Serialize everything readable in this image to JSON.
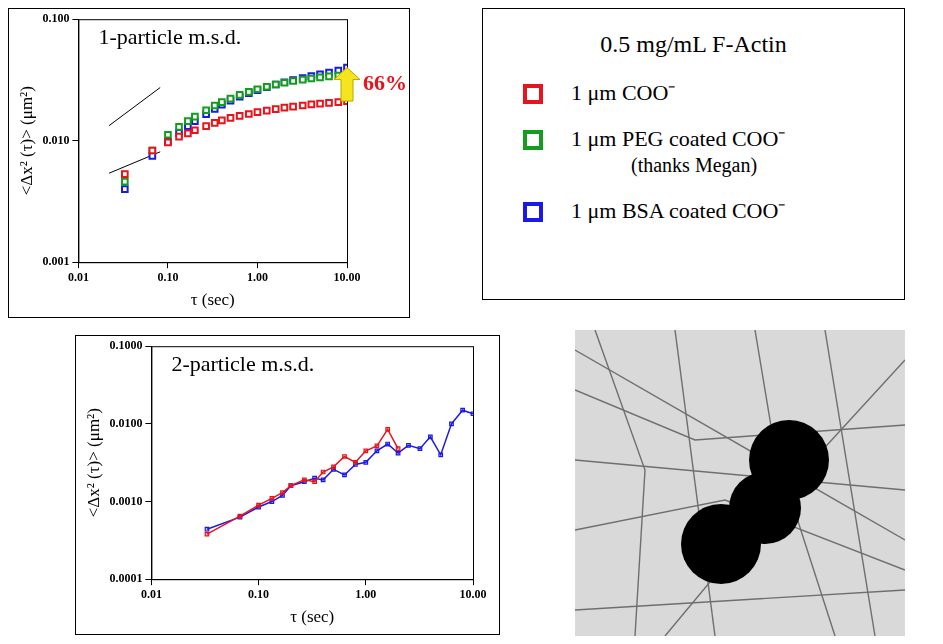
{
  "chart_data": [
    {
      "type": "scatter",
      "title": "1-particle m.s.d.",
      "x_label": "τ (sec)",
      "y_label": "<Δx² (τ)> (μm²)",
      "log": true,
      "grid": false,
      "legend": "right",
      "marker": "square",
      "xlim": [
        0.01,
        10
      ],
      "xticks": [
        0.01,
        {
          "value": 0.1,
          "label": "0.10"
        },
        {
          "value": 1,
          "label": "1.00"
        },
        {
          "value": 10,
          "label": "10.00"
        }
      ],
      "ylim": [
        0.001,
        0.1
      ],
      "yticks": [
        0.001,
        {
          "value": 0.01,
          "label": "0.010"
        },
        {
          "value": 0.1,
          "label": "0.100"
        }
      ],
      "x": [
        0.033,
        0.067,
        0.1,
        0.133,
        0.167,
        0.2,
        0.267,
        0.333,
        0.4,
        0.5,
        0.633,
        0.8,
        1.0,
        1.27,
        1.6,
        2.0,
        2.5,
        3.2,
        4.0,
        5.0,
        6.3,
        8.0,
        10.0
      ],
      "series": [
        {
          "name": "1 μm COO⁻",
          "color": "#e8141c",
          "values": [
            0.0053,
            0.0083,
            0.0097,
            0.0108,
            0.0115,
            0.0122,
            0.0132,
            0.014,
            0.0147,
            0.0154,
            0.016,
            0.0166,
            0.0172,
            0.0177,
            0.0182,
            0.0187,
            0.0191,
            0.0195,
            0.0199,
            0.0202,
            0.0205,
            0.0208,
            0.0212
          ]
        },
        {
          "name": "1 μm PEG coated COO⁻",
          "note": "(thanks Megan)",
          "color": "#149c1c",
          "values": [
            0.0046,
            0.0083,
            0.0112,
            0.013,
            0.0145,
            0.0158,
            0.0178,
            0.0195,
            0.0208,
            0.0222,
            0.0238,
            0.0252,
            0.0265,
            0.0278,
            0.029,
            0.03,
            0.031,
            0.0318,
            0.0325,
            0.0332,
            0.0338,
            0.0344,
            0.035
          ]
        },
        {
          "name": "1 μm BSA coated COO⁻",
          "color": "#1a1ae6",
          "values": [
            0.004,
            0.0075,
            0.0098,
            0.0116,
            0.0132,
            0.0145,
            0.0165,
            0.0183,
            0.0198,
            0.0214,
            0.023,
            0.0246,
            0.0261,
            0.0276,
            0.029,
            0.0303,
            0.0316,
            0.0328,
            0.034,
            0.0352,
            0.0364,
            0.0378,
            0.04
          ]
        }
      ],
      "guide_lines": [
        {
          "x": [
            0.022,
            0.082
          ],
          "y": [
            0.0133,
            0.0274
          ]
        },
        {
          "x": [
            0.022,
            0.082
          ],
          "y": [
            0.0054,
            0.0081
          ]
        }
      ],
      "annotations": [
        {
          "text": "66%",
          "x": 10,
          "y_from": 0.0212,
          "y_to": 0.04,
          "color": "#e8141c"
        }
      ],
      "legend_title": "0.5 mg/mL F-Actin"
    },
    {
      "type": "line",
      "title": "2-particle m.s.d.",
      "x_label": "τ (sec)",
      "y_label": "<Δx² (τ)> (μm²)",
      "log": true,
      "grid": false,
      "marker": "square",
      "line_style": "solid",
      "xlim": [
        0.01,
        10
      ],
      "xticks": [
        0.01,
        {
          "value": 0.1,
          "label": "0.10"
        },
        {
          "value": 1,
          "label": "1.00"
        },
        {
          "value": 10,
          "label": "10.00"
        }
      ],
      "ylim": [
        0.0001,
        0.1
      ],
      "yticks": [
        0.0001,
        {
          "value": 0.001,
          "label": "0.0010"
        },
        {
          "value": 0.01,
          "label": "0.0100"
        },
        {
          "value": 0.1,
          "label": "0.1000"
        }
      ],
      "series": [
        {
          "color": "#e8141c",
          "x": [
            0.033,
            0.067,
            0.1,
            0.133,
            0.167,
            0.2,
            0.267,
            0.333,
            0.4,
            0.5,
            0.633,
            0.8,
            1.0,
            1.27,
            1.6,
            2.0
          ],
          "values": [
            0.00038,
            0.00065,
            0.0009,
            0.0011,
            0.0013,
            0.0016,
            0.0019,
            0.0018,
            0.0024,
            0.0028,
            0.0038,
            0.0032,
            0.0045,
            0.0052,
            0.0085,
            0.0048
          ]
        },
        {
          "color": "#1a1ae6",
          "x": [
            0.033,
            0.067,
            0.1,
            0.133,
            0.167,
            0.2,
            0.267,
            0.333,
            0.4,
            0.5,
            0.633,
            0.8,
            1.0,
            1.27,
            1.6,
            2.0,
            2.5,
            3.2,
            4.0,
            5.0,
            6.3,
            8.0,
            10.0
          ],
          "values": [
            0.00044,
            0.00063,
            0.00085,
            0.001,
            0.0012,
            0.0016,
            0.0018,
            0.002,
            0.0019,
            0.0026,
            0.0022,
            0.003,
            0.0032,
            0.0045,
            0.0055,
            0.0042,
            0.0053,
            0.0048,
            0.0068,
            0.004,
            0.01,
            0.015,
            0.0135
          ]
        }
      ]
    }
  ]
}
